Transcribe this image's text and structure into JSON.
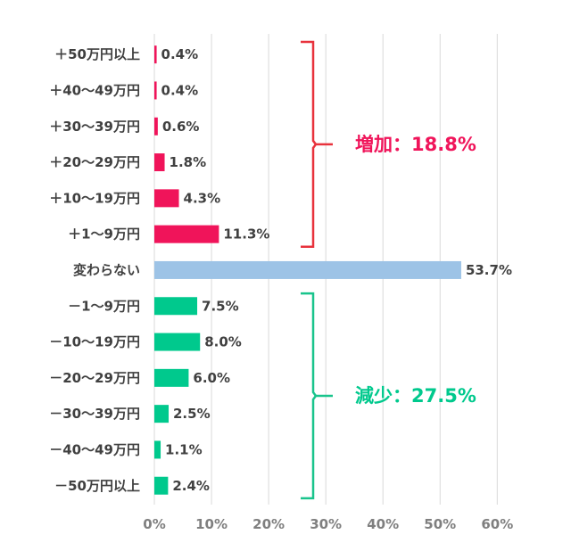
{
  "chart_data": {
    "type": "bar",
    "orientation": "horizontal",
    "categories": [
      "＋50万円以上",
      "＋40〜49万円",
      "＋30〜39万円",
      "＋20〜29万円",
      "＋10〜19万円",
      "＋1〜9万円",
      "変わらない",
      "－1〜9万円",
      "－10〜19万円",
      "－20〜29万円",
      "－30〜39万円",
      "－40〜49万円",
      "－50万円以上"
    ],
    "values": [
      0.4,
      0.4,
      0.6,
      1.8,
      4.3,
      11.3,
      53.7,
      7.5,
      8.0,
      6.0,
      2.5,
      1.1,
      2.4
    ],
    "value_labels": [
      "0.4%",
      "0.4%",
      "0.6%",
      "1.8%",
      "4.3%",
      "11.3%",
      "53.7%",
      "7.5%",
      "8.0%",
      "6.0%",
      "2.5%",
      "1.1%",
      "2.4%"
    ],
    "bar_groups": [
      "increase",
      "increase",
      "increase",
      "increase",
      "increase",
      "increase",
      "unchanged",
      "decrease",
      "decrease",
      "decrease",
      "decrease",
      "decrease",
      "decrease"
    ],
    "xlim": [
      0,
      60
    ],
    "x_ticks": [
      0,
      10,
      20,
      30,
      40,
      50,
      60
    ],
    "x_tick_labels": [
      "0%",
      "10%",
      "20%",
      "30%",
      "40%",
      "50%",
      "60%"
    ],
    "grid": "vertical",
    "legend": "none",
    "annotations": [
      {
        "text": "増加：18.8%",
        "group": "increase",
        "brace_from": 0,
        "brace_to": 5
      },
      {
        "text": "減少：27.5%",
        "group": "decrease",
        "brace_from": 7,
        "brace_to": 12
      }
    ]
  },
  "colors": {
    "increase": "#f0145a",
    "unchanged": "#9dc3e6",
    "decrease": "#00c98d",
    "increase_brace": "#e8323c",
    "decrease_brace": "#19c48c",
    "grid": "#d9d9d9",
    "text": "#404040",
    "tick_text": "#7f7f7f"
  }
}
